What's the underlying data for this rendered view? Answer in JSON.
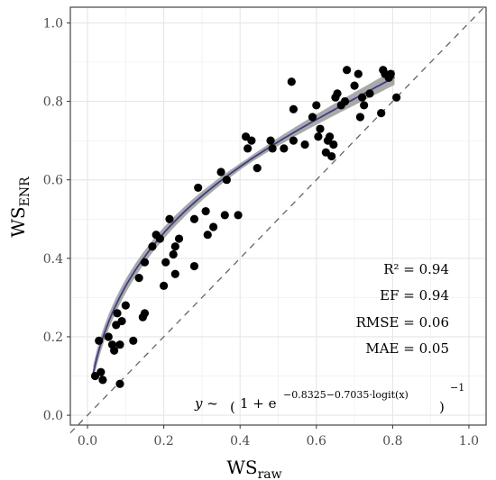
{
  "chart_data": {
    "type": "scatter",
    "xlabel_main": "WS",
    "xlabel_sub": "raw",
    "ylabel_main": "WS",
    "ylabel_sub": "ENR",
    "xlim": [
      -0.045,
      1.045
    ],
    "ylim": [
      -0.025,
      1.04
    ],
    "x_ticks": [
      0.0,
      0.2,
      0.4,
      0.6,
      0.8,
      1.0
    ],
    "x_tick_labels": [
      "0.0",
      "0.2",
      "0.4",
      "0.6",
      "0.8",
      "1.0"
    ],
    "y_ticks": [
      0.0,
      0.2,
      0.4,
      0.6,
      0.8,
      1.0
    ],
    "y_tick_labels": [
      "0.0",
      "0.2",
      "0.4",
      "0.6",
      "0.8",
      "1.0"
    ],
    "grid": true,
    "reference_line": "y = x (dashed)",
    "fit": {
      "type": "logistic",
      "a": -0.8325,
      "b": -0.7035,
      "color": "#3b3f86",
      "ribbon_color": "#9a9a9a"
    },
    "points_color": "#000000",
    "points": [
      [
        0.02,
        0.1
      ],
      [
        0.03,
        0.19
      ],
      [
        0.035,
        0.11
      ],
      [
        0.04,
        0.09
      ],
      [
        0.055,
        0.2
      ],
      [
        0.065,
        0.18
      ],
      [
        0.07,
        0.165
      ],
      [
        0.075,
        0.23
      ],
      [
        0.078,
        0.26
      ],
      [
        0.085,
        0.18
      ],
      [
        0.085,
        0.08
      ],
      [
        0.09,
        0.24
      ],
      [
        0.1,
        0.28
      ],
      [
        0.12,
        0.19
      ],
      [
        0.135,
        0.35
      ],
      [
        0.145,
        0.25
      ],
      [
        0.15,
        0.26
      ],
      [
        0.15,
        0.39
      ],
      [
        0.17,
        0.43
      ],
      [
        0.18,
        0.46
      ],
      [
        0.19,
        0.45
      ],
      [
        0.2,
        0.33
      ],
      [
        0.205,
        0.39
      ],
      [
        0.215,
        0.5
      ],
      [
        0.225,
        0.41
      ],
      [
        0.23,
        0.36
      ],
      [
        0.23,
        0.43
      ],
      [
        0.24,
        0.45
      ],
      [
        0.28,
        0.38
      ],
      [
        0.28,
        0.5
      ],
      [
        0.29,
        0.58
      ],
      [
        0.31,
        0.52
      ],
      [
        0.315,
        0.46
      ],
      [
        0.33,
        0.48
      ],
      [
        0.35,
        0.62
      ],
      [
        0.36,
        0.51
      ],
      [
        0.365,
        0.6
      ],
      [
        0.395,
        0.51
      ],
      [
        0.415,
        0.71
      ],
      [
        0.42,
        0.68
      ],
      [
        0.43,
        0.7
      ],
      [
        0.445,
        0.63
      ],
      [
        0.48,
        0.7
      ],
      [
        0.485,
        0.68
      ],
      [
        0.515,
        0.68
      ],
      [
        0.535,
        0.85
      ],
      [
        0.54,
        0.78
      ],
      [
        0.54,
        0.7
      ],
      [
        0.57,
        0.69
      ],
      [
        0.59,
        0.76
      ],
      [
        0.6,
        0.79
      ],
      [
        0.605,
        0.71
      ],
      [
        0.61,
        0.73
      ],
      [
        0.625,
        0.67
      ],
      [
        0.63,
        0.7
      ],
      [
        0.635,
        0.71
      ],
      [
        0.64,
        0.66
      ],
      [
        0.645,
        0.69
      ],
      [
        0.65,
        0.81
      ],
      [
        0.655,
        0.82
      ],
      [
        0.665,
        0.79
      ],
      [
        0.675,
        0.8
      ],
      [
        0.68,
        0.88
      ],
      [
        0.7,
        0.84
      ],
      [
        0.71,
        0.87
      ],
      [
        0.715,
        0.76
      ],
      [
        0.72,
        0.81
      ],
      [
        0.725,
        0.79
      ],
      [
        0.74,
        0.82
      ],
      [
        0.77,
        0.77
      ],
      [
        0.775,
        0.88
      ],
      [
        0.78,
        0.87
      ],
      [
        0.79,
        0.86
      ],
      [
        0.795,
        0.87
      ],
      [
        0.81,
        0.81
      ]
    ],
    "annotations": {
      "r2": "R² = 0.94",
      "ef": "EF = 0.94",
      "rmse": "RMSE = 0.06",
      "mae": "MAE = 0.05",
      "formula_lhs": "y ~",
      "formula_base": "1 + e",
      "formula_exponent": "−0.8325−0.7035·logit(x)",
      "formula_power": "−1"
    }
  }
}
